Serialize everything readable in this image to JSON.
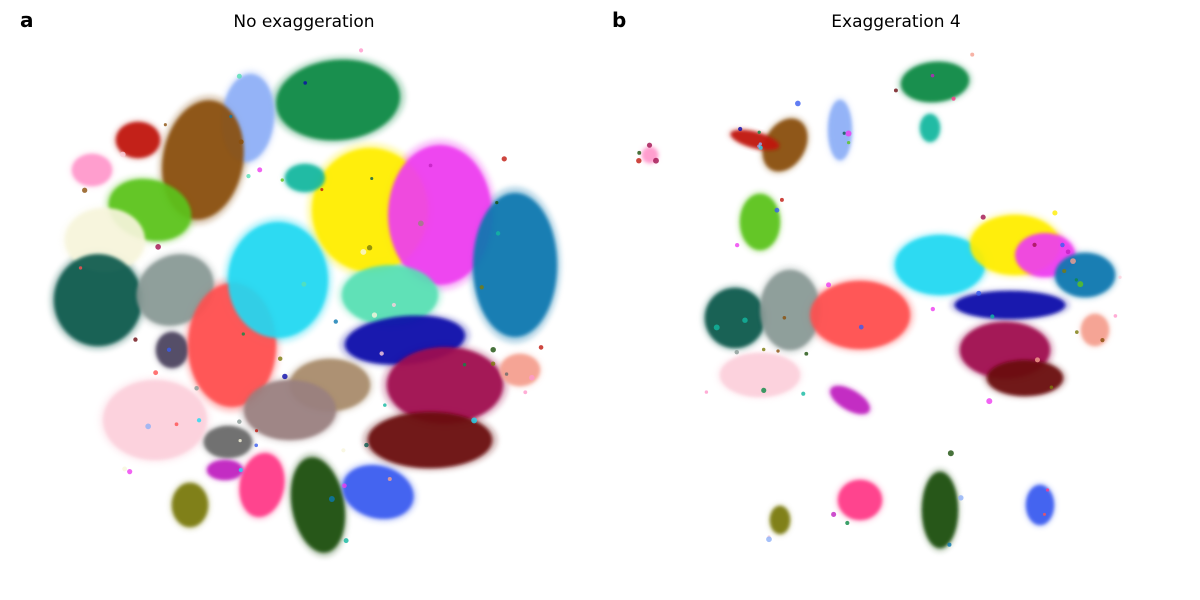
{
  "panels": [
    {
      "letter": "a",
      "title": "No exaggeration"
    },
    {
      "letter": "b",
      "title": "Exaggeration 4"
    }
  ],
  "chart_data": [
    {
      "type": "scatter",
      "title": "No exaggeration",
      "panel_label": "a",
      "axes_visible": false,
      "grid": false,
      "legend": "none",
      "note": "2D embedding of many points; clusters colored by category",
      "clusters": [
        {
          "color": "#0b8a45"
        },
        {
          "color": "#8fb0f7"
        },
        {
          "color": "#8a4f0b"
        },
        {
          "color": "#c0180f"
        },
        {
          "color": "#ff99cc"
        },
        {
          "color": "#5cc41b"
        },
        {
          "color": "#f7f5dc"
        },
        {
          "color": "#0a5a4e"
        },
        {
          "color": "#8a9a96"
        },
        {
          "color": "#4e4561"
        },
        {
          "color": "#ff5050"
        },
        {
          "color": "#21d9f2"
        },
        {
          "color": "#ffee00"
        },
        {
          "color": "#ee3cf0"
        },
        {
          "color": "#0a78b0"
        },
        {
          "color": "#58e0b4"
        },
        {
          "color": "#0a0aaa"
        },
        {
          "color": "#a98c6c"
        },
        {
          "color": "#9a8080"
        },
        {
          "color": "#a0104f"
        },
        {
          "color": "#6a0a10"
        },
        {
          "color": "#f5a090"
        },
        {
          "color": "#fcd0dc"
        },
        {
          "color": "#6a6a6a"
        },
        {
          "color": "#ff3a88"
        },
        {
          "color": "#c020c0"
        },
        {
          "color": "#7a7a0a"
        },
        {
          "color": "#1a4f0a"
        },
        {
          "color": "#3a5cf0"
        },
        {
          "color": "#12b8a0"
        }
      ]
    },
    {
      "type": "scatter",
      "title": "Exaggeration 4",
      "panel_label": "b",
      "axes_visible": false,
      "grid": false,
      "legend": "none",
      "note": "same data with exaggeration factor 4",
      "clusters": [
        {
          "color": "#0b8a45"
        },
        {
          "color": "#12b8a0"
        },
        {
          "color": "#8fb0f7"
        },
        {
          "color": "#8a4f0b"
        },
        {
          "color": "#c0180f"
        },
        {
          "color": "#5cc41b"
        },
        {
          "color": "#ff99cc"
        },
        {
          "color": "#0a5a4e"
        },
        {
          "color": "#8a9a96"
        },
        {
          "color": "#ff5050"
        },
        {
          "color": "#21d9f2"
        },
        {
          "color": "#ffee00"
        },
        {
          "color": "#ee3cf0"
        },
        {
          "color": "#0a78b0"
        },
        {
          "color": "#0a0aaa"
        },
        {
          "color": "#a0104f"
        },
        {
          "color": "#6a0a10"
        },
        {
          "color": "#fcd0dc"
        },
        {
          "color": "#c020c0"
        },
        {
          "color": "#7a7a0a"
        },
        {
          "color": "#ff3a88"
        },
        {
          "color": "#1a4f0a"
        },
        {
          "color": "#3a5cf0"
        },
        {
          "color": "#f5a090"
        }
      ]
    }
  ]
}
